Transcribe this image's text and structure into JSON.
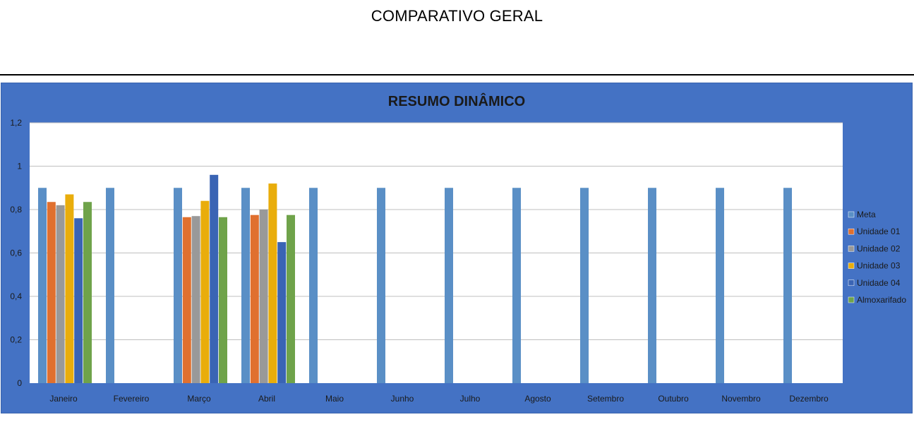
{
  "page": {
    "title": "COMPARATIVO GERAL"
  },
  "colors": {
    "panel_background": "#4472c4",
    "plot_background": "#ffffff",
    "gridline": "#bfbfbf"
  },
  "chart_data": {
    "type": "bar",
    "title": "RESUMO DINÂMICO",
    "xlabel": "",
    "ylabel": "",
    "ylim": [
      0,
      1.2
    ],
    "yticks": [
      "0",
      "0,2",
      "0,4",
      "0,6",
      "0,8",
      "1",
      "1,2"
    ],
    "grid": true,
    "legend_position": "right",
    "categories": [
      "Janeiro",
      "Fevereiro",
      "Março",
      "Abril",
      "Maio",
      "Junho",
      "Julho",
      "Agosto",
      "Setembro",
      "Outubro",
      "Novembro",
      "Dezembro"
    ],
    "series": [
      {
        "name": "Meta",
        "color": "#5a8fc6",
        "values": [
          0.9,
          0.9,
          0.9,
          0.9,
          0.9,
          0.9,
          0.9,
          0.9,
          0.9,
          0.9,
          0.9,
          0.9
        ]
      },
      {
        "name": "Unidade 01",
        "color": "#e0702f",
        "values": [
          0.835,
          null,
          0.765,
          0.775,
          null,
          null,
          null,
          null,
          null,
          null,
          null,
          null
        ]
      },
      {
        "name": "Unidade 02",
        "color": "#999999",
        "values": [
          0.82,
          null,
          0.77,
          0.8,
          null,
          null,
          null,
          null,
          null,
          null,
          null,
          null
        ]
      },
      {
        "name": "Unidade 03",
        "color": "#e9ad0b",
        "values": [
          0.87,
          null,
          0.84,
          0.92,
          null,
          null,
          null,
          null,
          null,
          null,
          null,
          null
        ]
      },
      {
        "name": "Unidade 04",
        "color": "#3a64b4",
        "values": [
          0.76,
          null,
          0.96,
          0.65,
          null,
          null,
          null,
          null,
          null,
          null,
          null,
          null
        ]
      },
      {
        "name": "Almoxarifado",
        "color": "#6fa34a",
        "values": [
          0.835,
          null,
          0.765,
          0.775,
          null,
          null,
          null,
          null,
          null,
          null,
          null,
          null
        ]
      }
    ]
  }
}
